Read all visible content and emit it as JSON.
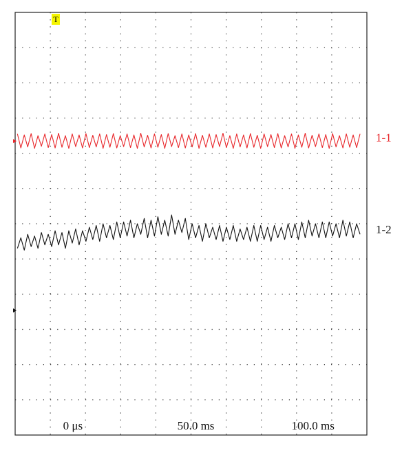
{
  "chart_data": {
    "type": "line",
    "trigger_label": "T",
    "x": [
      -20,
      -18.5,
      -17,
      -15.5,
      -14,
      -12.5,
      -11,
      -9.5,
      -8,
      -6.5,
      -5,
      -3.5,
      -2,
      -0.5,
      1,
      2.5,
      4,
      5.5,
      7,
      8.5,
      10,
      11.5,
      13,
      14.5,
      16,
      17.5,
      19,
      20.5,
      22,
      23.5,
      25,
      26.5,
      28,
      29.5,
      31,
      32.5,
      34,
      35.5,
      37,
      38.5,
      40,
      41.5,
      43,
      44.5,
      46,
      47.5,
      49,
      50.5,
      52,
      53.5,
      55,
      56.5,
      58,
      59.5,
      61,
      62.5,
      64,
      65.5,
      67,
      68.5,
      70,
      71.5,
      73,
      74.5,
      76,
      77.5,
      79,
      80.5,
      82,
      83.5,
      85,
      86.5,
      88,
      89.5,
      91,
      92.5,
      94,
      95.5,
      97,
      98.5,
      100,
      101.5,
      103,
      104.5,
      106,
      107.5,
      109,
      110.5,
      112,
      113.5,
      115,
      116.5,
      118,
      119.5,
      121,
      122.5,
      124,
      125.5,
      127,
      128.5,
      130
    ],
    "series": [
      {
        "name": "1-1",
        "color": "#e8262a",
        "values": [
          8.55,
          8.15,
          8.52,
          8.18,
          8.56,
          8.14,
          8.5,
          8.2,
          8.55,
          8.16,
          8.53,
          8.15,
          8.57,
          8.17,
          8.5,
          8.14,
          8.55,
          8.19,
          8.52,
          8.15,
          8.56,
          8.16,
          8.51,
          8.18,
          8.55,
          8.14,
          8.53,
          8.17,
          8.56,
          8.15,
          8.5,
          8.19,
          8.55,
          8.16,
          8.52,
          8.14,
          8.57,
          8.18,
          8.51,
          8.15,
          8.55,
          8.17,
          8.53,
          8.14,
          8.56,
          8.19,
          8.5,
          8.16,
          8.55,
          8.15,
          8.52,
          8.18,
          8.56,
          8.14,
          8.51,
          8.17,
          8.55,
          8.15,
          8.53,
          8.19,
          8.57,
          8.16,
          8.5,
          8.14,
          8.55,
          8.18,
          8.52,
          8.15,
          8.56,
          8.17,
          8.51,
          8.14,
          8.55,
          8.19,
          8.53,
          8.16,
          8.56,
          8.15,
          8.5,
          8.18,
          8.55,
          8.14,
          8.52,
          8.17,
          8.57,
          8.15,
          8.51,
          8.19,
          8.55,
          8.16,
          8.53,
          8.14,
          8.56,
          8.18,
          8.5,
          8.15,
          8.55,
          8.17,
          8.52,
          8.16,
          8.55
        ]
      },
      {
        "name": "1-2",
        "color": "#111111",
        "values": [
          5.3,
          5.6,
          5.25,
          5.7,
          5.35,
          5.65,
          5.3,
          5.75,
          5.4,
          5.7,
          5.35,
          5.8,
          5.4,
          5.75,
          5.3,
          5.8,
          5.45,
          5.85,
          5.4,
          5.8,
          5.5,
          5.9,
          5.55,
          5.95,
          5.5,
          6.0,
          5.6,
          5.95,
          5.55,
          6.05,
          5.6,
          6.05,
          5.65,
          6.1,
          5.6,
          6.0,
          5.7,
          6.15,
          5.6,
          6.1,
          5.65,
          6.2,
          5.7,
          6.1,
          5.65,
          6.25,
          5.7,
          6.1,
          5.75,
          6.15,
          5.55,
          6.0,
          5.6,
          5.95,
          5.5,
          6.0,
          5.6,
          5.9,
          5.55,
          5.95,
          5.5,
          5.9,
          5.55,
          5.95,
          5.5,
          5.85,
          5.55,
          5.9,
          5.5,
          5.95,
          5.5,
          5.95,
          5.55,
          5.9,
          5.5,
          5.95,
          5.6,
          5.9,
          5.55,
          6.0,
          5.6,
          6.0,
          5.55,
          6.05,
          5.6,
          6.1,
          5.65,
          6.0,
          5.6,
          6.05,
          5.6,
          6.05,
          5.65,
          6.0,
          5.6,
          6.1,
          5.65,
          6.05,
          5.6,
          6.0,
          5.7
        ]
      }
    ],
    "xlim": [
      -21,
      133
    ],
    "xticks": [
      {
        "value": 0,
        "label": "0 μs"
      },
      {
        "value": 50,
        "label": "50.0 ms"
      },
      {
        "value": 100,
        "label": "100.0 ms"
      }
    ],
    "ylim": [
      0,
      12
    ],
    "grid": true
  }
}
